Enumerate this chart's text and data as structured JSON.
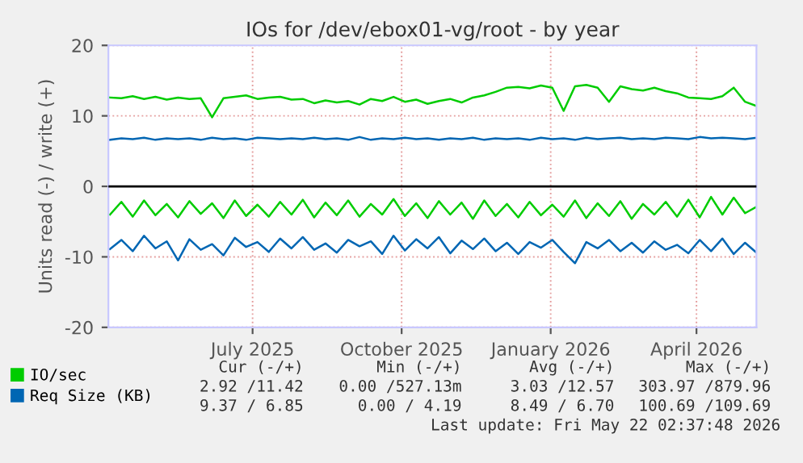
{
  "chart_data": {
    "type": "line",
    "title": "IOs for /dev/ebox01-vg/root - by year",
    "ylabel": "Units read (-) / write (+)",
    "x": [
      "2025-04-18",
      "2025-04-25",
      "2025-05-02",
      "2025-05-09",
      "2025-05-16",
      "2025-05-23",
      "2025-05-30",
      "2025-06-06",
      "2025-06-13",
      "2025-06-20",
      "2025-06-27",
      "2025-07-04",
      "2025-07-11",
      "2025-07-18",
      "2025-07-25",
      "2025-08-01",
      "2025-08-08",
      "2025-08-15",
      "2025-08-22",
      "2025-08-29",
      "2025-09-05",
      "2025-09-12",
      "2025-09-19",
      "2025-09-26",
      "2025-10-03",
      "2025-10-10",
      "2025-10-17",
      "2025-10-24",
      "2025-10-31",
      "2025-11-07",
      "2025-11-14",
      "2025-11-21",
      "2025-11-28",
      "2025-12-05",
      "2025-12-12",
      "2025-12-19",
      "2025-12-26",
      "2026-01-02",
      "2026-01-09",
      "2026-01-16",
      "2026-01-23",
      "2026-01-30",
      "2026-02-06",
      "2026-02-13",
      "2026-02-20",
      "2026-02-27",
      "2026-03-06",
      "2026-03-13",
      "2026-03-20",
      "2026-03-27",
      "2026-04-03",
      "2026-04-10",
      "2026-04-17",
      "2026-04-24",
      "2026-05-01",
      "2026-05-08",
      "2026-05-15",
      "2026-05-22"
    ],
    "series": [
      {
        "name": "IO/sec",
        "color": "#00cc00",
        "values": [
          12.6,
          12.5,
          12.8,
          12.4,
          12.7,
          12.3,
          12.6,
          12.4,
          12.5,
          9.8,
          12.5,
          12.7,
          12.9,
          12.4,
          12.6,
          12.7,
          12.3,
          12.4,
          11.8,
          12.2,
          11.9,
          12.1,
          11.6,
          12.4,
          12.1,
          12.7,
          12.0,
          12.3,
          11.7,
          12.1,
          12.4,
          11.9,
          12.6,
          12.9,
          13.4,
          14.0,
          14.1,
          13.9,
          14.3,
          14.0,
          10.7,
          14.2,
          14.4,
          14.0,
          12.0,
          14.2,
          13.8,
          13.6,
          14.0,
          13.5,
          13.2,
          12.6,
          12.5,
          12.4,
          12.8,
          14.0,
          12.0,
          11.4
        ]
      },
      {
        "color": "#00cc00",
        "values": [
          -4.0,
          -2.2,
          -4.3,
          -2.0,
          -4.1,
          -2.5,
          -4.4,
          -2.1,
          -3.9,
          -2.4,
          -4.5,
          -2.0,
          -4.2,
          -2.6,
          -4.3,
          -2.2,
          -4.0,
          -1.9,
          -4.4,
          -2.3,
          -4.1,
          -2.0,
          -4.3,
          -2.5,
          -4.0,
          -1.8,
          -4.2,
          -2.4,
          -4.5,
          -2.1,
          -4.0,
          -2.3,
          -4.6,
          -2.0,
          -4.2,
          -2.5,
          -4.4,
          -2.2,
          -4.1,
          -2.6,
          -4.3,
          -2.0,
          -4.5,
          -2.4,
          -4.2,
          -2.1,
          -4.6,
          -2.5,
          -4.0,
          -2.2,
          -4.3,
          -1.9,
          -4.4,
          -1.5,
          -4.0,
          -1.6,
          -3.8,
          -2.9
        ]
      },
      {
        "name": "Req Size (KB)",
        "color": "#0066b3",
        "values": [
          6.6,
          6.8,
          6.7,
          6.9,
          6.6,
          6.8,
          6.7,
          6.8,
          6.6,
          6.9,
          6.7,
          6.8,
          6.6,
          6.9,
          6.8,
          6.7,
          6.8,
          6.7,
          6.9,
          6.7,
          6.8,
          6.6,
          7.0,
          6.6,
          6.8,
          6.7,
          6.9,
          6.7,
          6.8,
          6.6,
          6.8,
          6.7,
          6.9,
          6.6,
          6.8,
          6.7,
          6.8,
          6.6,
          6.9,
          6.7,
          6.8,
          6.6,
          6.9,
          6.7,
          6.8,
          6.9,
          6.7,
          6.8,
          6.7,
          6.9,
          6.8,
          6.7,
          7.0,
          6.8,
          6.9,
          6.8,
          6.7,
          6.9
        ]
      },
      {
        "color": "#0066b3",
        "values": [
          -8.9,
          -7.6,
          -9.2,
          -7.0,
          -8.8,
          -7.8,
          -10.5,
          -7.5,
          -9.0,
          -8.2,
          -9.8,
          -7.3,
          -8.6,
          -7.9,
          -9.3,
          -7.4,
          -8.8,
          -7.2,
          -9.0,
          -8.1,
          -9.4,
          -7.6,
          -8.5,
          -7.8,
          -9.6,
          -7.0,
          -9.1,
          -7.5,
          -8.8,
          -7.2,
          -9.5,
          -7.7,
          -8.9,
          -7.4,
          -9.2,
          -8.0,
          -9.6,
          -7.9,
          -8.7,
          -7.6,
          -9.3,
          -10.9,
          -7.9,
          -8.8,
          -7.6,
          -9.2,
          -8.0,
          -9.4,
          -7.8,
          -9.0,
          -8.3,
          -9.5,
          -7.6,
          -9.2,
          -7.4,
          -9.6,
          -8.0,
          -9.4
        ]
      }
    ],
    "xlim": [
      "2025-04-17",
      "2026-05-22"
    ],
    "xticks": [
      {
        "value": "2025-07-15",
        "label": "July 2025"
      },
      {
        "value": "2025-10-15",
        "label": "October 2025"
      },
      {
        "value": "2026-01-15",
        "label": "January 2026"
      },
      {
        "value": "2026-04-15",
        "label": "April 2026"
      }
    ],
    "ylim": [
      -20,
      20
    ],
    "yticks": [
      -20,
      -10,
      0,
      10,
      20
    ],
    "ref_lines": [
      {
        "axis": "y",
        "value": 0,
        "color": "#000000"
      }
    ],
    "grid": true,
    "legend": "bottom",
    "annotations": [
      "Cur (-/+)",
      "Min (-/+)",
      "Avg (-/+)",
      "Max (-/+)",
      "2.92 /11.42",
      "0.00 /527.13m",
      "3.03 /12.57",
      "303.97 /879.96",
      "9.37 / 6.85",
      "0.00 / 4.19",
      "8.49 / 6.70",
      "100.69 /109.69",
      "Last update: Fri May 22 02:37:48 2026"
    ]
  }
}
